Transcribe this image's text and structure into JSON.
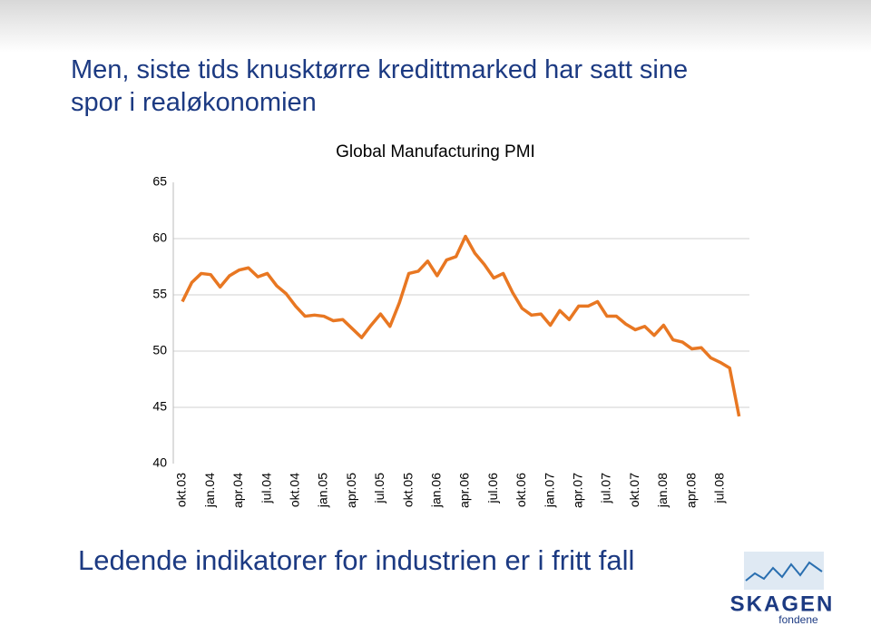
{
  "slide_title": "Men, siste tids knusktørre kredittmarked har satt sine spor i realøkonomien",
  "chart_data": {
    "type": "line",
    "title": "Global Manufacturing PMI",
    "categories": [
      "okt.03",
      null,
      null,
      "jan.04",
      null,
      null,
      "apr.04",
      null,
      null,
      "jul.04",
      null,
      null,
      "okt.04",
      null,
      null,
      "jan.05",
      null,
      null,
      "apr.05",
      null,
      null,
      "jul.05",
      null,
      null,
      "okt.05",
      null,
      null,
      "jan.06",
      null,
      null,
      "apr.06",
      null,
      null,
      "jul.06",
      null,
      null,
      "okt.06",
      null,
      null,
      "jan.07",
      null,
      null,
      "apr.07",
      null,
      null,
      "jul.07",
      null,
      null,
      "okt.07",
      null,
      null,
      "jan.08",
      null,
      null,
      "apr.08",
      null,
      null,
      "jul.08",
      null,
      null
    ],
    "series": [
      {
        "name": "Global Manufacturing PMI",
        "color": "#e87722",
        "values": [
          54.4,
          56.1,
          56.9,
          56.8,
          55.7,
          56.7,
          57.2,
          57.4,
          56.6,
          56.9,
          55.8,
          55.1,
          54.0,
          53.1,
          53.2,
          53.1,
          52.7,
          52.8,
          52.0,
          51.2,
          52.3,
          53.3,
          52.2,
          54.3,
          56.9,
          57.1,
          58.0,
          56.7,
          58.1,
          58.4,
          60.2,
          58.7,
          57.7,
          56.5,
          56.9,
          55.2,
          53.8,
          53.2,
          53.3,
          52.3,
          53.6,
          52.8,
          54.0,
          54.0,
          54.4,
          53.1,
          53.1,
          52.4,
          51.9,
          52.2,
          51.4,
          52.3,
          51.0,
          50.8,
          50.2,
          50.3,
          49.4,
          49.0,
          48.5,
          44.2
        ]
      }
    ],
    "ylim": [
      40,
      65
    ],
    "yticks": [
      40,
      45,
      50,
      55,
      60,
      65
    ],
    "grid": true
  },
  "footer_text": "Ledende indikatorer for industrien er i fritt fall",
  "logo": {
    "name": "SKAGEN",
    "subtitle": "fondene"
  }
}
